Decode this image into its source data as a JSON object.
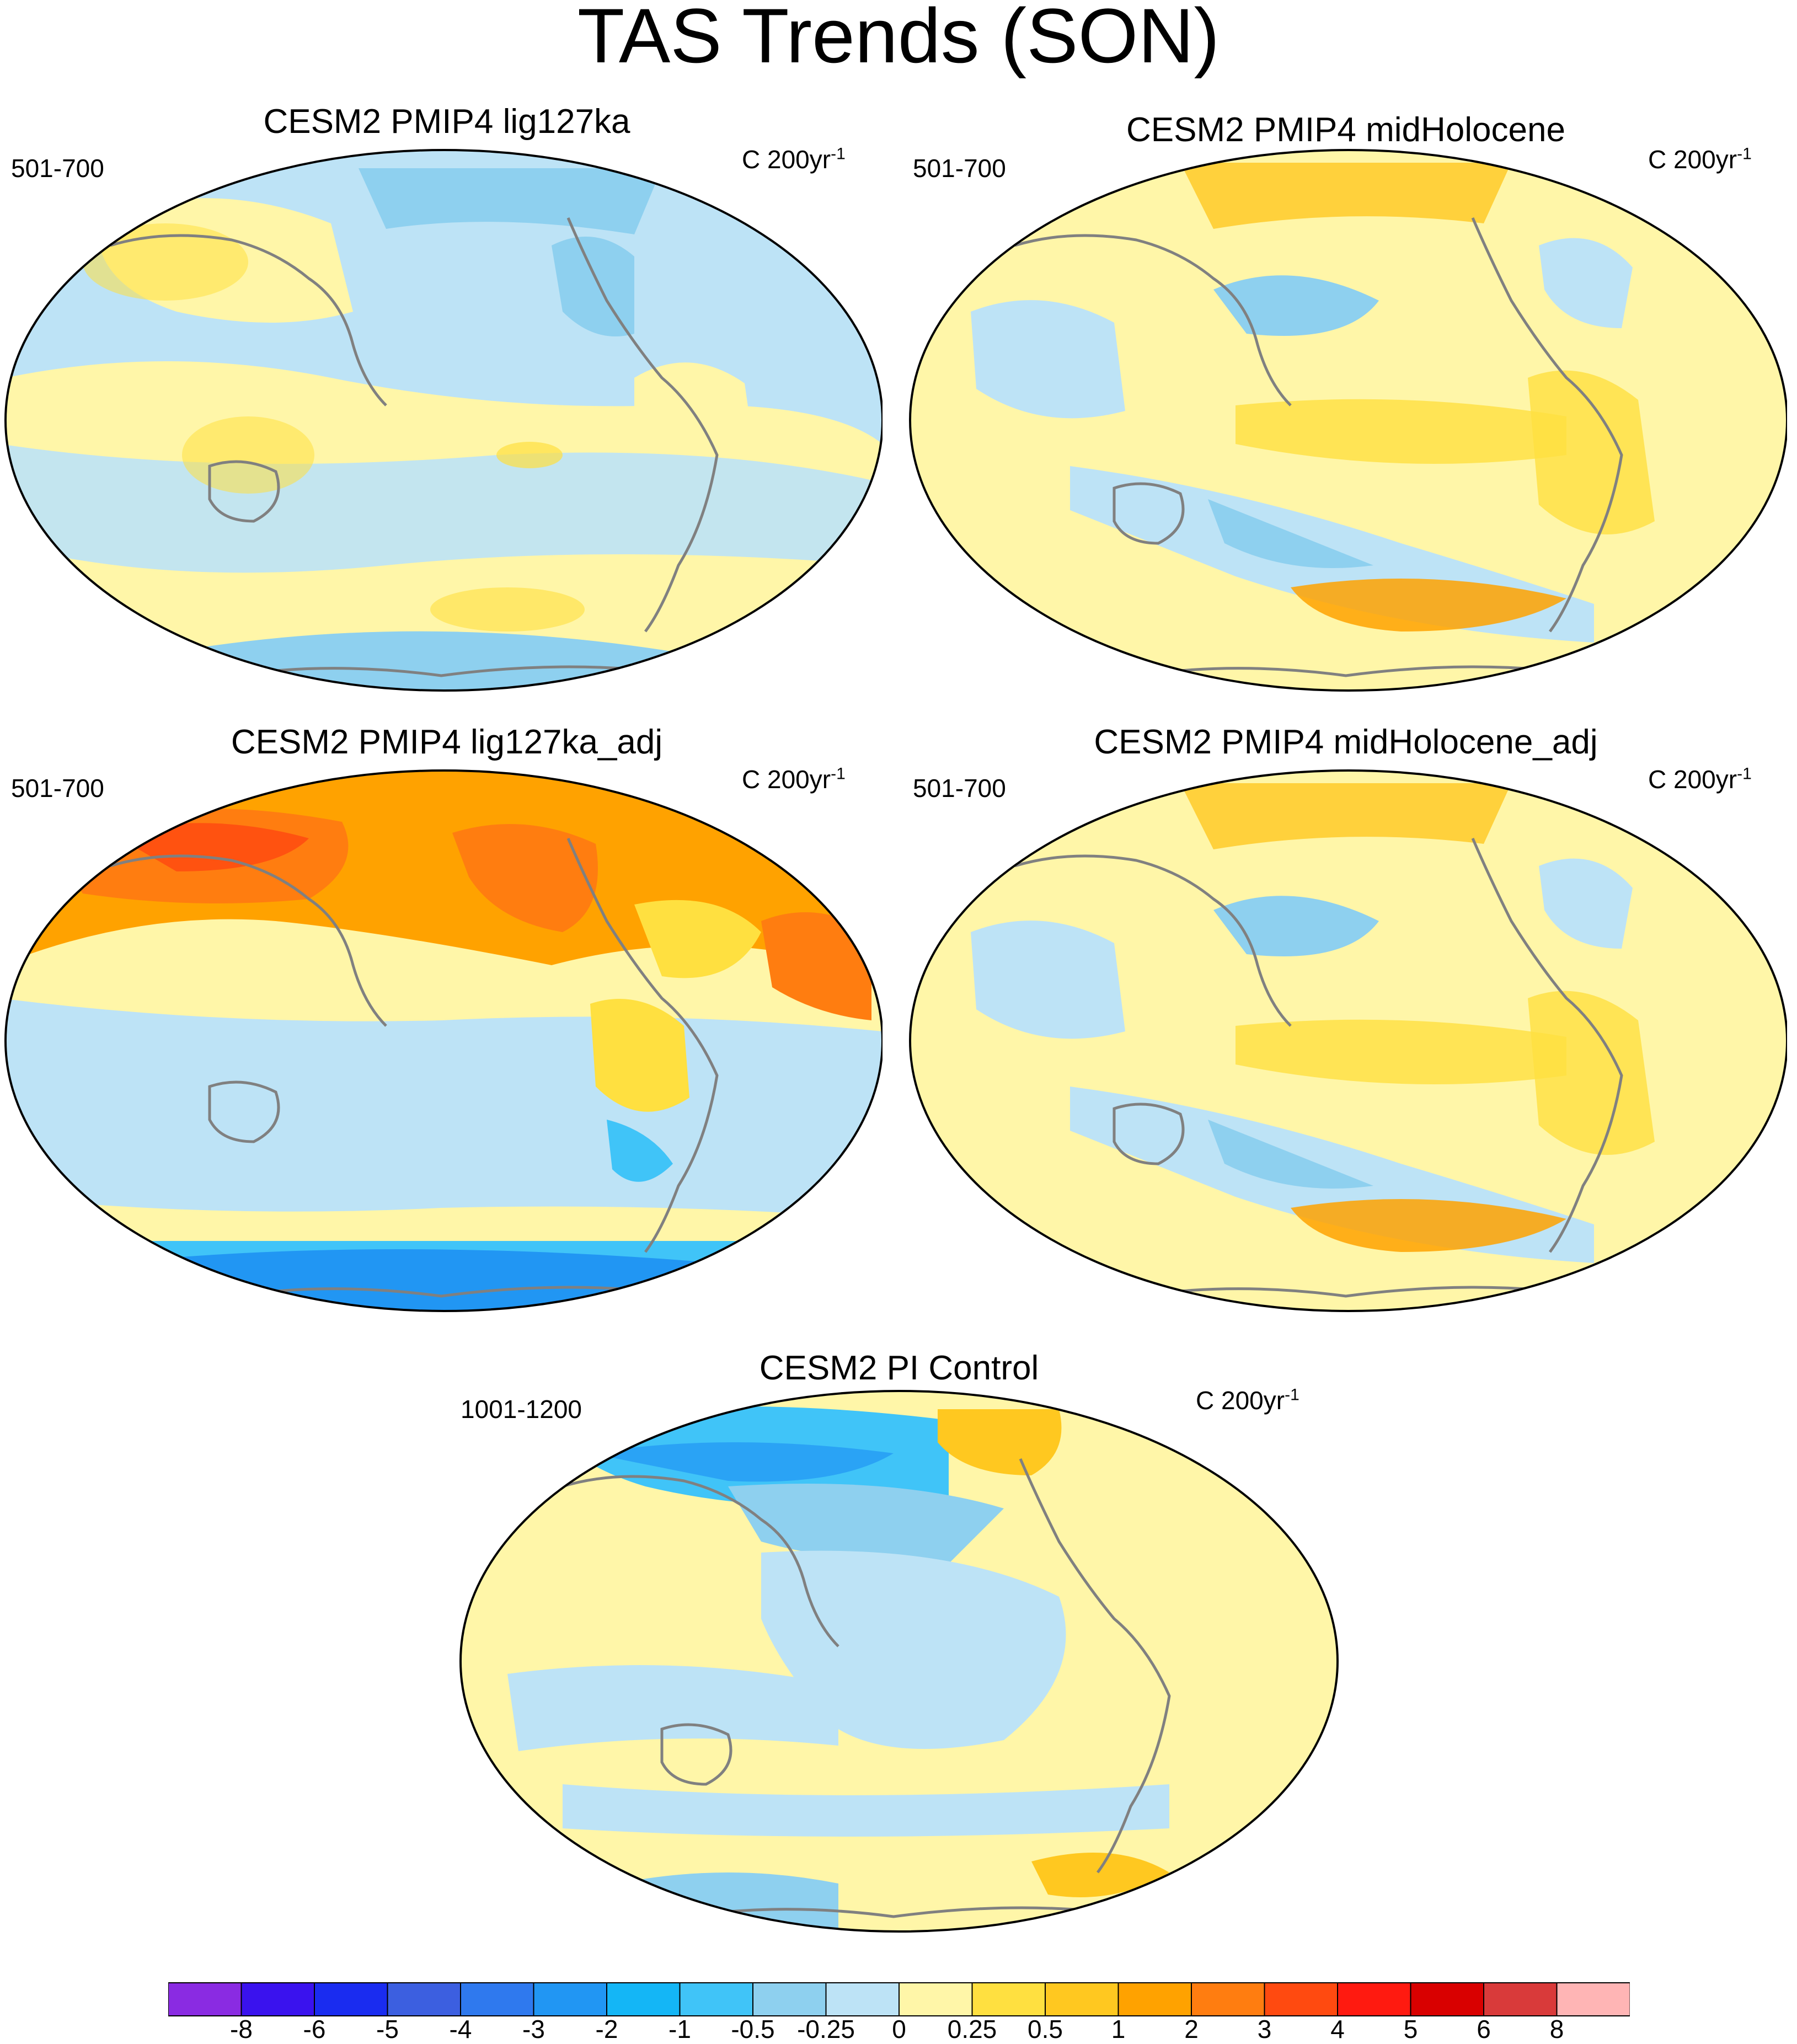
{
  "title": "TAS Trends (SON)",
  "panels": [
    {
      "title": "CESM2 PMIP4 lig127ka",
      "period": "501-700",
      "units_base": "C 200yr",
      "units_exp": "-1"
    },
    {
      "title": "CESM2 PMIP4 midHolocene",
      "period": "501-700",
      "units_base": "C 200yr",
      "units_exp": "-1"
    },
    {
      "title": "CESM2 PMIP4 lig127ka_adj",
      "period": "501-700",
      "units_base": "C 200yr",
      "units_exp": "-1"
    },
    {
      "title": "CESM2 PMIP4 midHolocene_adj",
      "period": "501-700",
      "units_base": "C 200yr",
      "units_exp": "-1"
    },
    {
      "title": "CESM2 PI Control",
      "period": "1001-1200",
      "units_base": "C 200yr",
      "units_exp": "-1"
    }
  ],
  "colorbar": {
    "labels": [
      "-8",
      "-6",
      "-5",
      "-4",
      "-3",
      "-2",
      "-1",
      "-0.5",
      "-0.25",
      "0",
      "0.25",
      "0.5",
      "1",
      "2",
      "3",
      "4",
      "5",
      "6",
      "8"
    ],
    "colors": [
      "#8a2be2",
      "#3a12ee",
      "#1a2cf0",
      "#3c5fe0",
      "#2f79ee",
      "#2196f3",
      "#14b6f6",
      "#40c4f8",
      "#8ed0ef",
      "#bde3f6",
      "#fff6a8",
      "#ffe040",
      "#ffc820",
      "#ffa200",
      "#ff7d10",
      "#ff4a10",
      "#ff1a10",
      "#d90000",
      "#d93a3a",
      "#ffb5b5"
    ]
  },
  "colors": {
    "coast": "#808080",
    "ocean_cool": "#bde3f6",
    "warm_light": "#fff6a8"
  }
}
